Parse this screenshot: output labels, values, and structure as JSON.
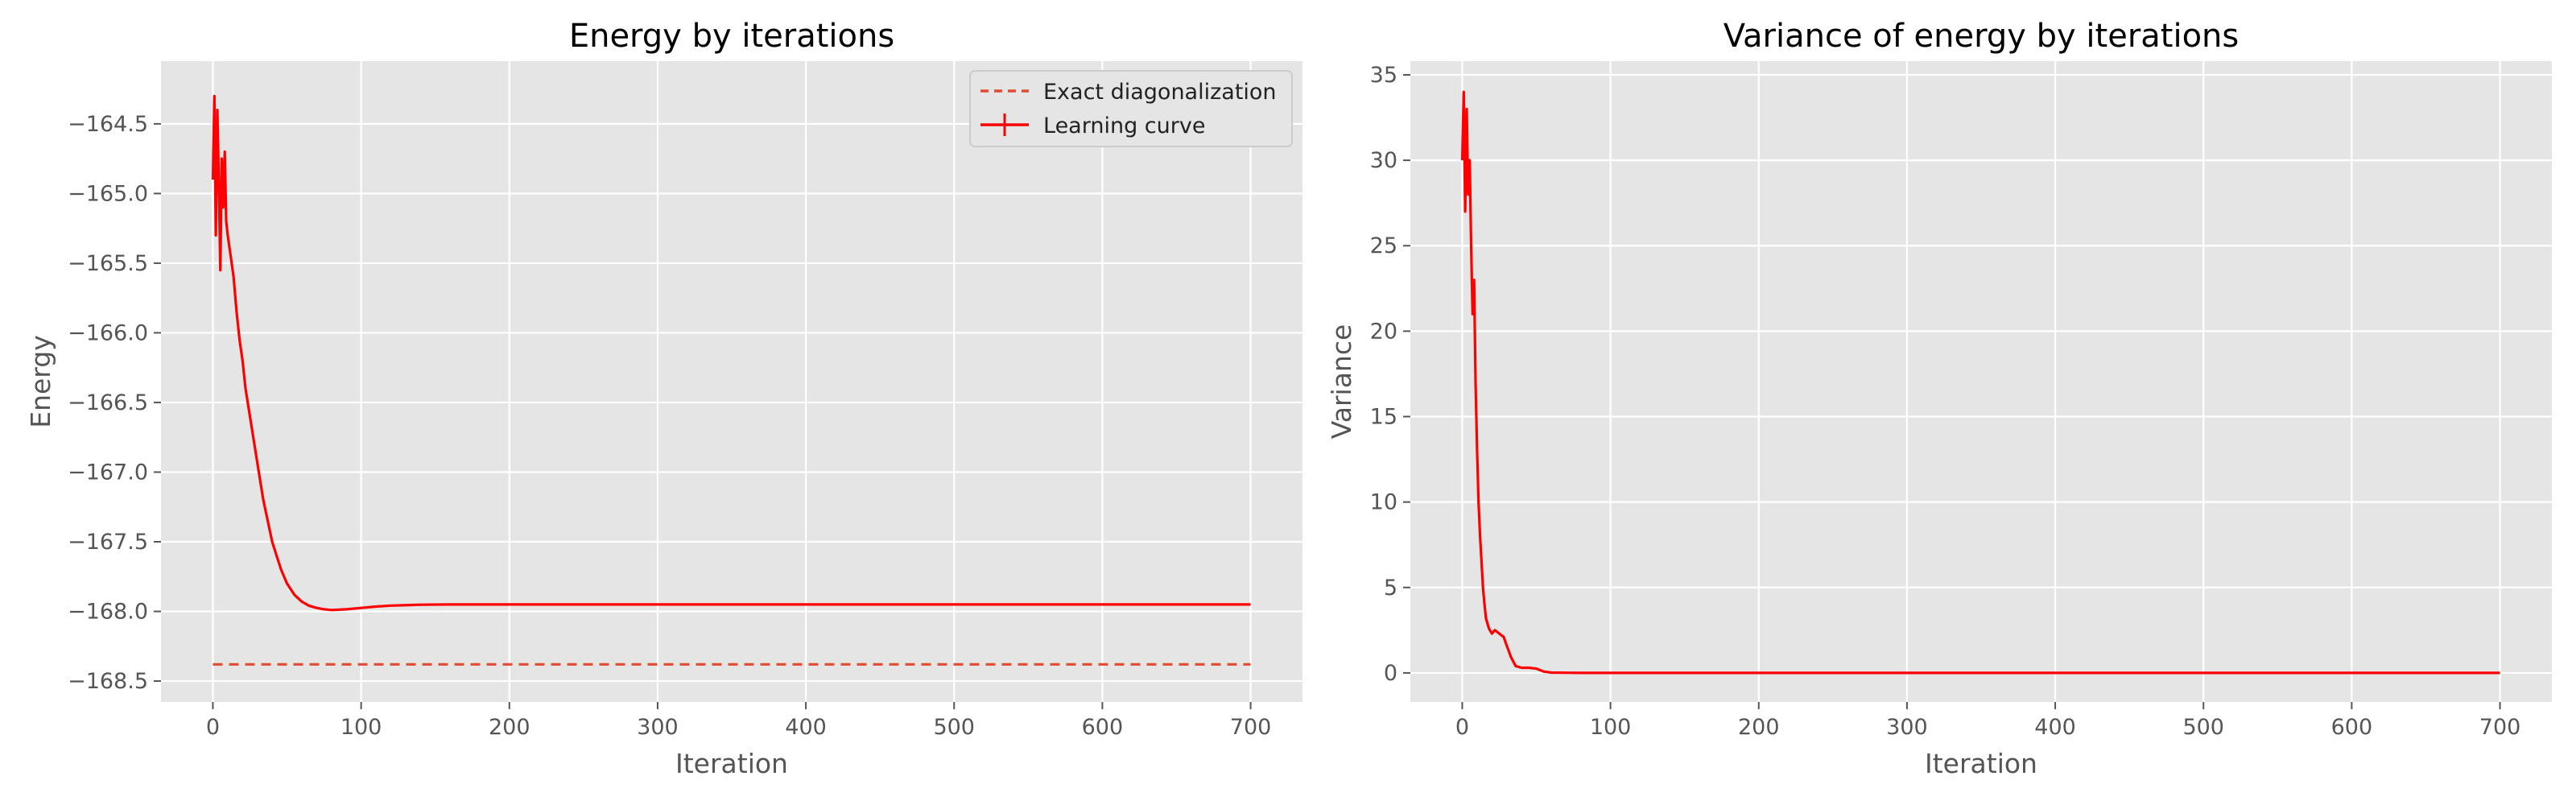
{
  "chart_data": [
    {
      "type": "line",
      "title": "Energy by iterations",
      "xlabel": "Iteration",
      "ylabel": "Energy",
      "xlim": [
        -35,
        735
      ],
      "ylim": [
        -168.65,
        -164.05
      ],
      "xticks": [
        0,
        100,
        200,
        300,
        400,
        500,
        600,
        700
      ],
      "yticks": [
        -168.5,
        -168.0,
        -167.5,
        -167.0,
        -166.5,
        -166.0,
        -165.5,
        -165.0,
        -164.5
      ],
      "ytick_labels": [
        "−168.5",
        "−168.0",
        "−167.5",
        "−167.0",
        "−166.5",
        "−166.0",
        "−165.5",
        "−165.0",
        "−164.5"
      ],
      "grid": true,
      "legend_position": "top-right",
      "series": [
        {
          "name": "Exact diagonalization",
          "style": "dashed",
          "color": "#e24a33",
          "x": [
            0,
            700
          ],
          "y": [
            -168.38,
            -168.38
          ]
        },
        {
          "name": "Learning curve",
          "style": "solid",
          "color": "#ff0000",
          "x": [
            0,
            1,
            2,
            3,
            4,
            5,
            6,
            7,
            8,
            9,
            10,
            12,
            14,
            16,
            18,
            20,
            22,
            25,
            28,
            31,
            34,
            37,
            40,
            43,
            46,
            50,
            55,
            60,
            65,
            70,
            75,
            80,
            85,
            90,
            100,
            110,
            120,
            140,
            160,
            200,
            300,
            400,
            500,
            600,
            700
          ],
          "y": [
            -164.9,
            -164.3,
            -165.3,
            -164.4,
            -164.9,
            -165.55,
            -164.75,
            -165.1,
            -164.7,
            -165.2,
            -165.3,
            -165.45,
            -165.6,
            -165.85,
            -166.05,
            -166.2,
            -166.4,
            -166.6,
            -166.8,
            -167.0,
            -167.2,
            -167.35,
            -167.5,
            -167.6,
            -167.7,
            -167.8,
            -167.88,
            -167.93,
            -167.96,
            -167.975,
            -167.985,
            -167.99,
            -167.988,
            -167.985,
            -167.975,
            -167.965,
            -167.958,
            -167.952,
            -167.95,
            -167.95,
            -167.95,
            -167.95,
            -167.95,
            -167.95,
            -167.95
          ]
        }
      ]
    },
    {
      "type": "line",
      "title": "Variance of energy by iterations",
      "xlabel": "Iteration",
      "ylabel": "Variance",
      "xlim": [
        -35,
        735
      ],
      "ylim": [
        -1.7,
        35.8
      ],
      "xticks": [
        0,
        100,
        200,
        300,
        400,
        500,
        600,
        700
      ],
      "yticks": [
        0,
        5,
        10,
        15,
        20,
        25,
        30,
        35
      ],
      "ytick_labels": [
        "0",
        "5",
        "10",
        "15",
        "20",
        "25",
        "30",
        "35"
      ],
      "grid": true,
      "series": [
        {
          "style": "solid",
          "color": "#ff0000",
          "x": [
            0,
            1,
            2,
            3,
            4,
            5,
            6,
            7,
            8,
            9,
            10,
            11,
            12,
            13,
            14,
            15,
            16,
            18,
            20,
            22,
            25,
            28,
            30,
            33,
            36,
            40,
            45,
            50,
            55,
            60,
            70,
            80,
            100,
            200,
            300,
            400,
            500,
            600,
            700
          ],
          "y": [
            30,
            34,
            27,
            33,
            28,
            30,
            25,
            21,
            23,
            17,
            13,
            10,
            8,
            6.5,
            5,
            4,
            3.2,
            2.6,
            2.3,
            2.5,
            2.3,
            2.1,
            1.6,
            0.9,
            0.4,
            0.3,
            0.3,
            0.25,
            0.08,
            0.02,
            0.01,
            0,
            0,
            0,
            0,
            0,
            0,
            0,
            0
          ]
        }
      ]
    }
  ]
}
